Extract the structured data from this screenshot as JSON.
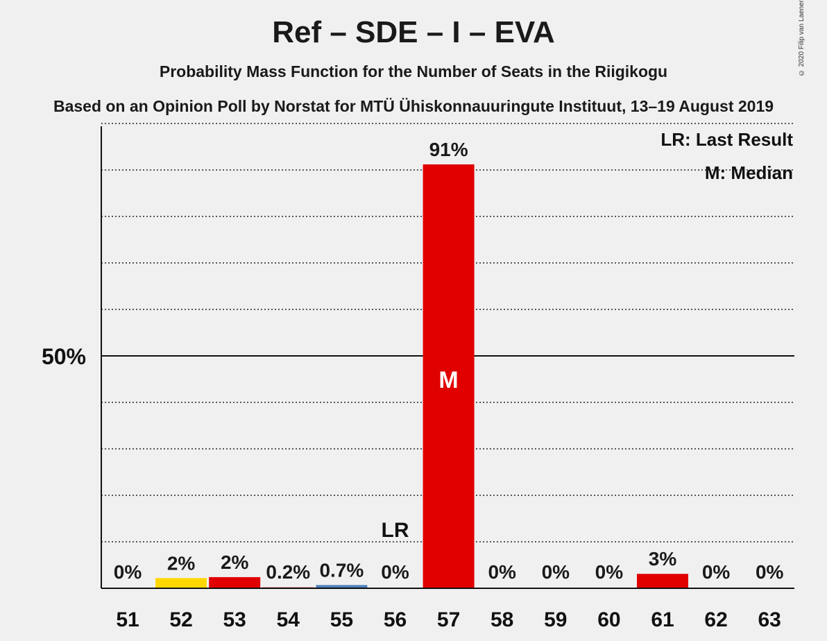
{
  "chart_data": {
    "type": "bar",
    "title": "Ref – SDE – I – EVA",
    "subtitle": "Probability Mass Function for the Number of Seats in the Riigikogu",
    "source": "Based on an Opinion Poll by Norstat for MTÜ Ühiskonnauuringute Instituut, 13–19 August 2019",
    "copyright": "© 2020 Filip van Laenen",
    "categories": [
      "51",
      "52",
      "53",
      "54",
      "55",
      "56",
      "57",
      "58",
      "59",
      "60",
      "61",
      "62",
      "63"
    ],
    "values": [
      0,
      2.2,
      2.4,
      0.2,
      0.7,
      0,
      91.2,
      0,
      0,
      0,
      3.1,
      0,
      0
    ],
    "value_labels": [
      "0%",
      "2%",
      "2%",
      "0.2%",
      "0.7%",
      "0%",
      "91%",
      "0%",
      "0%",
      "0%",
      "3%",
      "0%",
      "0%"
    ],
    "bar_colors": [
      "#e10000",
      "#ffd700",
      "#e10000",
      "#e10000",
      "#4f81bd",
      "#e10000",
      "#e10000",
      "#e10000",
      "#e10000",
      "#e10000",
      "#e10000",
      "#e10000",
      "#e10000"
    ],
    "ylim": [
      0,
      100
    ],
    "ytick_label": "50%",
    "ytick_value": 50,
    "grid": "dotted every 10%",
    "last_result": {
      "category": "56",
      "label": "LR"
    },
    "median": {
      "category": "57",
      "label": "M"
    },
    "legend": {
      "placement": "top-right",
      "items": [
        "LR: Last Result",
        "M: Median"
      ]
    }
  }
}
